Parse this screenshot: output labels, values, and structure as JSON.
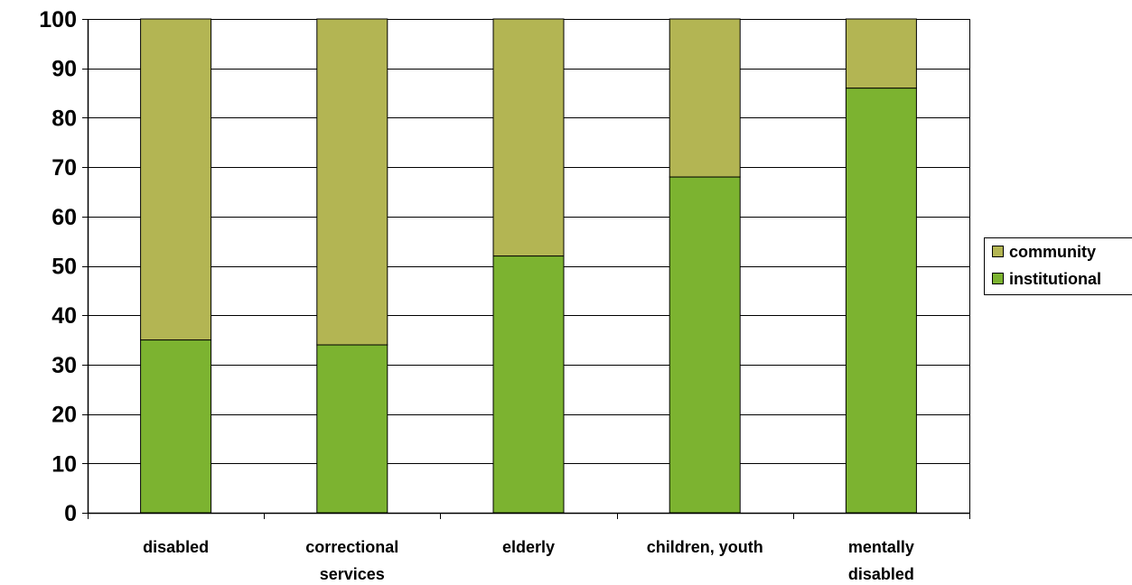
{
  "chart_data": {
    "type": "bar",
    "stacked": true,
    "categories": [
      [
        "disabled"
      ],
      [
        "correctional",
        "services"
      ],
      [
        "elderly"
      ],
      [
        "children, youth"
      ],
      [
        "mentally",
        "disabled"
      ]
    ],
    "series": [
      {
        "name": "institutional",
        "color": "#7cb330",
        "values": [
          35,
          34,
          52,
          68,
          86
        ]
      },
      {
        "name": "community",
        "color": "#b3b553",
        "values": [
          65,
          66,
          48,
          32,
          14
        ]
      }
    ],
    "legend_order": [
      "community",
      "institutional"
    ],
    "legend_position": "right",
    "ylim": [
      0,
      100
    ],
    "yticks": [
      0,
      10,
      20,
      30,
      40,
      50,
      60,
      70,
      80,
      90,
      100
    ],
    "grid": true,
    "title": "",
    "xlabel": "",
    "ylabel": ""
  }
}
